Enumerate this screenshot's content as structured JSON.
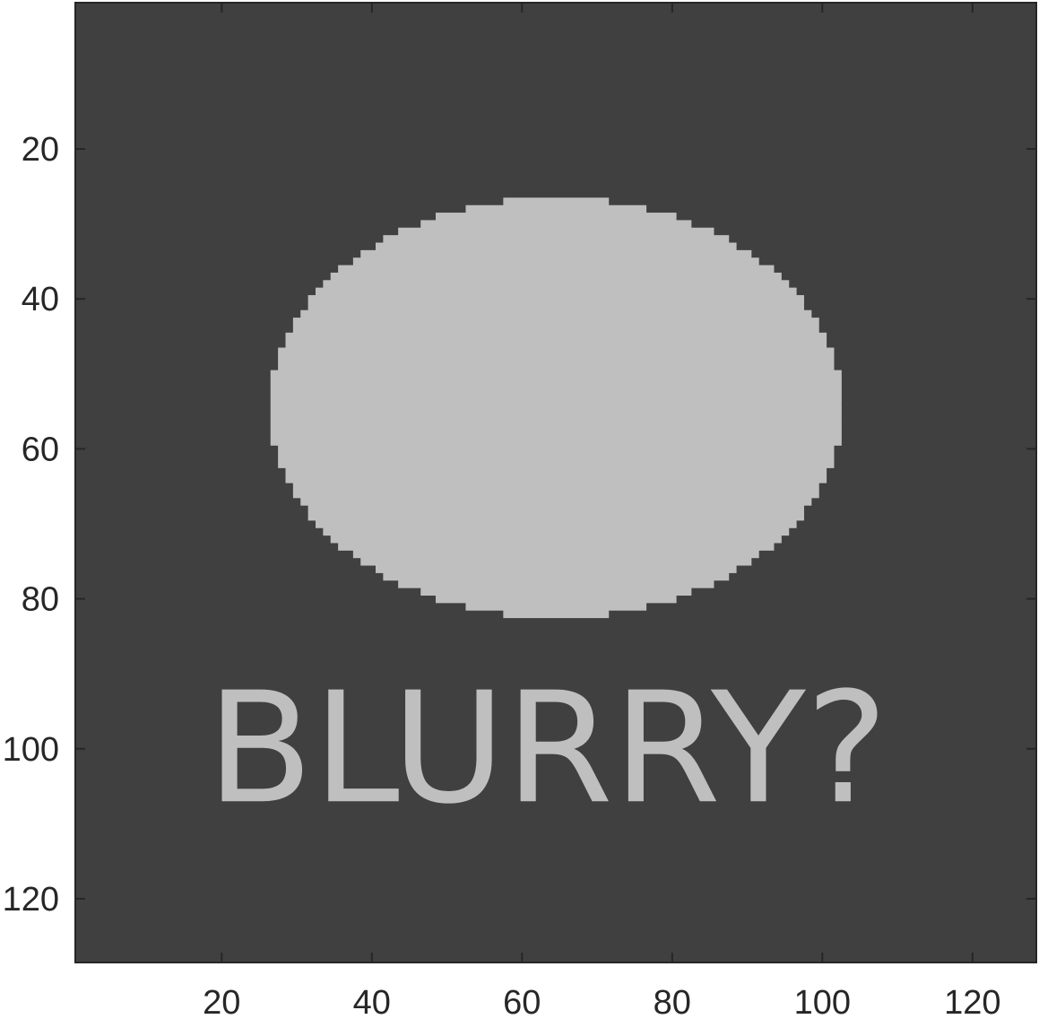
{
  "chart_data": {
    "type": "heatmap",
    "title": "",
    "xlabel": "",
    "ylabel": "",
    "xlim": [
      0.5,
      128.5
    ],
    "ylim": [
      0.5,
      128.5
    ],
    "y_reversed": true,
    "grid": false,
    "legend": "none",
    "x_ticks": [
      {
        "value": 20,
        "label": "20"
      },
      {
        "value": 40,
        "label": "40"
      },
      {
        "value": 60,
        "label": "60"
      },
      {
        "value": 80,
        "label": "80"
      },
      {
        "value": 100,
        "label": "100"
      },
      {
        "value": 120,
        "label": "120"
      }
    ],
    "y_ticks": [
      {
        "value": 20,
        "label": "20"
      },
      {
        "value": 40,
        "label": "40"
      },
      {
        "value": 60,
        "label": "60"
      },
      {
        "value": 80,
        "label": "80"
      },
      {
        "value": 100,
        "label": "100"
      },
      {
        "value": 120,
        "label": "120"
      }
    ],
    "background_color": "#404040",
    "foreground_color": "#bfbfbf",
    "axis_color": "#262626",
    "shapes": [
      {
        "kind": "ellipse",
        "center_x": 64.5,
        "center_y": 54.5,
        "radius_x": 38,
        "radius_y": 28
      }
    ],
    "image_text": {
      "text": "BLURRY?",
      "x": 18,
      "y": 107
    }
  }
}
